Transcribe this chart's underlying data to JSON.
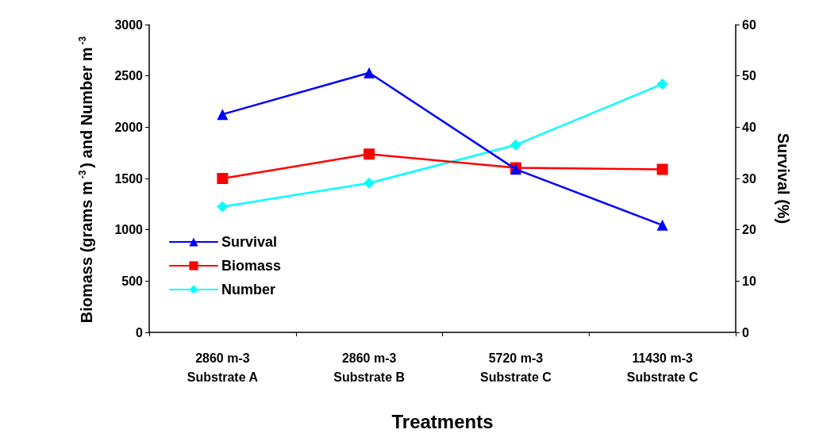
{
  "chart_data": {
    "type": "line",
    "xlabel": "Treatments",
    "ylabel": "Biomass (grams m$^{-3}$) and Number m$^{-3}$",
    "y2label": "Survival (%)",
    "categories": [
      "2860 m-3\nSubstrate A",
      "2860 m-3\nSubstrate B",
      "5720 m-3\nSubstrate C",
      "11430 m-3\nSubstrate C"
    ],
    "series": [
      {
        "name": "Survival",
        "color": "#0000ff",
        "marker": "triangle",
        "axis": "y2",
        "values": [
          42.5,
          50.6,
          31.8,
          20.9
        ]
      },
      {
        "name": "Biomass",
        "color": "#ff0000",
        "marker": "square",
        "values": [
          1500,
          1738,
          1604,
          1589
        ]
      },
      {
        "name": "Number",
        "color": "#00ffff",
        "marker": "diamond",
        "values": [
          1225,
          1455,
          1827,
          2421
        ]
      }
    ],
    "ylim": [
      0,
      3000
    ],
    "yticks": [
      0,
      500,
      1000,
      1500,
      2000,
      2500,
      3000
    ],
    "y2lim": [
      0,
      60
    ],
    "y2ticks": [
      0,
      10,
      20,
      30,
      40,
      50,
      60
    ],
    "grid": false,
    "legend": "bottom left"
  }
}
